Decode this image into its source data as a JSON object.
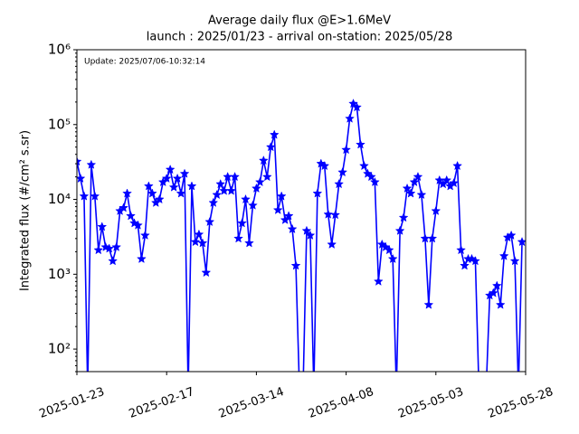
{
  "chart_data": {
    "type": "line",
    "title": "Average daily flux @E>1.6MeV",
    "subtitle": "launch : 2025/01/23 - arrival on-station: 2025/05/28",
    "annotation": "Update: 2025/07/06-10:32:14",
    "y_label": "Integrated flux (#/cm² s.sr)",
    "log_y": true,
    "x": [
      "2025-01-23",
      "2025-01-24",
      "2025-01-25",
      "2025-01-26",
      "2025-01-27",
      "2025-01-28",
      "2025-01-29",
      "2025-01-30",
      "2025-01-31",
      "2025-02-01",
      "2025-02-02",
      "2025-02-03",
      "2025-02-04",
      "2025-02-05",
      "2025-02-06",
      "2025-02-07",
      "2025-02-08",
      "2025-02-09",
      "2025-02-10",
      "2025-02-11",
      "2025-02-12",
      "2025-02-13",
      "2025-02-14",
      "2025-02-15",
      "2025-02-16",
      "2025-02-17",
      "2025-02-18",
      "2025-02-19",
      "2025-02-20",
      "2025-02-21",
      "2025-02-22",
      "2025-02-23",
      "2025-02-24",
      "2025-02-25",
      "2025-02-26",
      "2025-02-27",
      "2025-02-28",
      "2025-03-01",
      "2025-03-02",
      "2025-03-03",
      "2025-03-04",
      "2025-03-05",
      "2025-03-06",
      "2025-03-07",
      "2025-03-08",
      "2025-03-09",
      "2025-03-10",
      "2025-03-11",
      "2025-03-12",
      "2025-03-13",
      "2025-03-14",
      "2025-03-15",
      "2025-03-16",
      "2025-03-17",
      "2025-03-18",
      "2025-03-19",
      "2025-03-20",
      "2025-03-21",
      "2025-03-22",
      "2025-03-23",
      "2025-03-24",
      "2025-03-25",
      "2025-03-26",
      "2025-03-27",
      "2025-03-28",
      "2025-03-29",
      "2025-03-30",
      "2025-03-31",
      "2025-04-01",
      "2025-04-02",
      "2025-04-03",
      "2025-04-04",
      "2025-04-05",
      "2025-04-06",
      "2025-04-07",
      "2025-04-08",
      "2025-04-09",
      "2025-04-10",
      "2025-04-11",
      "2025-04-12",
      "2025-04-13",
      "2025-04-14",
      "2025-04-15",
      "2025-04-16",
      "2025-04-17",
      "2025-04-18",
      "2025-04-19",
      "2025-04-20",
      "2025-04-21",
      "2025-04-22",
      "2025-04-23",
      "2025-04-24",
      "2025-04-25",
      "2025-04-26",
      "2025-04-27",
      "2025-04-28",
      "2025-04-29",
      "2025-04-30",
      "2025-05-01",
      "2025-05-02",
      "2025-05-03",
      "2025-05-04",
      "2025-05-05",
      "2025-05-06",
      "2025-05-07",
      "2025-05-08",
      "2025-05-09",
      "2025-05-10",
      "2025-05-11",
      "2025-05-12",
      "2025-05-13",
      "2025-05-14",
      "2025-05-15",
      "2025-05-16",
      "2025-05-17",
      "2025-05-18",
      "2025-05-19",
      "2025-05-20",
      "2025-05-21",
      "2025-05-22",
      "2025-05-23",
      "2025-05-24",
      "2025-05-25",
      "2025-05-26",
      "2025-05-27"
    ],
    "series": [
      {
        "color": "#0000ff",
        "values": [
          32000,
          19000,
          11000,
          0,
          29000,
          11000,
          2100,
          4300,
          2300,
          2200,
          1500,
          2300,
          7000,
          7700,
          12000,
          6000,
          4800,
          4500,
          1600,
          3300,
          15000,
          12000,
          9000,
          10000,
          17000,
          19000,
          25000,
          14500,
          19000,
          12000,
          22000,
          0,
          15000,
          2700,
          3400,
          2600,
          1050,
          5000,
          9000,
          11500,
          16000,
          13000,
          20000,
          13000,
          20000,
          3000,
          4800,
          10000,
          2600,
          8300,
          14000,
          17000,
          33000,
          20000,
          50000,
          73000,
          7200,
          11000,
          5300,
          6000,
          4000,
          1300,
          0,
          0,
          3800,
          3300,
          0,
          12000,
          30000,
          28000,
          6300,
          2500,
          6200,
          16000,
          23000,
          46000,
          120000,
          190000,
          170000,
          54000,
          28000,
          22000,
          20000,
          17000,
          800,
          2500,
          2300,
          2100,
          1600,
          0,
          3800,
          5700,
          14000,
          12000,
          17000,
          20000,
          11500,
          3000,
          390,
          3000,
          7000,
          18000,
          16000,
          18000,
          15000,
          16500,
          28000,
          2100,
          1300,
          1600,
          1600,
          1500,
          0,
          null,
          0,
          520,
          560,
          700,
          390,
          1750,
          3100,
          3300,
          1500,
          0,
          2700
        ]
      }
    ],
    "xlim": [
      "2025-01-23",
      "2025-05-28"
    ],
    "xticks": [
      "2025-01-23",
      "2025-02-17",
      "2025-03-14",
      "2025-04-08",
      "2025-05-03",
      "2025-05-28"
    ],
    "ylim": [
      50,
      1000000
    ],
    "yticks": [
      {
        "value": 100,
        "label": "10²"
      },
      {
        "value": 1000,
        "label": "10³"
      },
      {
        "value": 10000,
        "label": "10⁴"
      },
      {
        "value": 100000,
        "label": "10⁵"
      },
      {
        "value": 1000000,
        "label": "10⁶"
      }
    ]
  }
}
